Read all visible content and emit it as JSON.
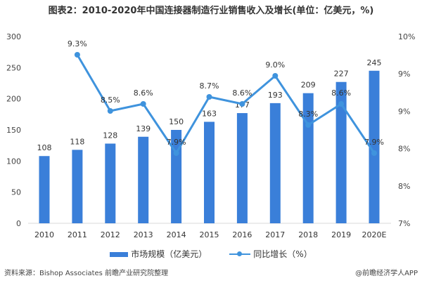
{
  "chart_data": {
    "type": "bar+line",
    "title": "图表2：2010-2020年中国连接器制造行业销售收入及增长(单位：亿美元，%)",
    "categories": [
      "2010",
      "2011",
      "2012",
      "2013",
      "2014",
      "2015",
      "2016",
      "2017",
      "2018",
      "2019",
      "2020E"
    ],
    "series": [
      {
        "name": "市场规模（亿美元）",
        "type": "bar",
        "axis": "left",
        "color": "#3a7fd9",
        "values": [
          108,
          118,
          128,
          139,
          150,
          163,
          177,
          193,
          209,
          227,
          245
        ],
        "labels": [
          "108",
          "118",
          "128",
          "139",
          "150",
          "163",
          "177",
          "193",
          "209",
          "227",
          "245"
        ]
      },
      {
        "name": "同比增长（%）",
        "type": "line",
        "axis": "right",
        "color": "#3f93dd",
        "values": [
          null,
          9.3,
          8.5,
          8.6,
          7.9,
          8.7,
          8.6,
          9.0,
          8.3,
          8.6,
          7.9
        ],
        "labels": [
          "",
          "9.3%",
          "8.5%",
          "8.6%",
          "7.9%",
          "8.7%",
          "8.6%",
          "9.0%",
          "8.3%",
          "8.6%",
          "7.9%"
        ]
      }
    ],
    "ylim": [
      0,
      300
    ],
    "yticks": [
      "0",
      "50",
      "100",
      "150",
      "200",
      "250",
      "300"
    ],
    "y2ticks": [
      "7%",
      "8%",
      "8%",
      "9%",
      "9%",
      "10%"
    ],
    "grid": false,
    "legend": "bottom"
  },
  "footer": {
    "source": "资料来源：Bishop Associates 前瞻产业研究院整理",
    "credit": "@前瞻经济学人APP"
  }
}
